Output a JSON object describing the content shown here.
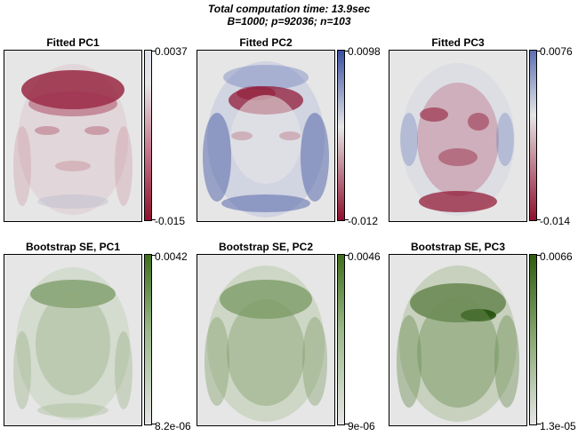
{
  "title": {
    "line1": "Total computation time: 13.9sec",
    "line2": "B=1000; p=92036; n=103"
  },
  "colors": {
    "diverging_low": "#8e0f2e",
    "diverging_mid": "#e8e8e8",
    "diverging_high": "#3a4fa0",
    "sequential_low": "#e6e6e6",
    "sequential_high": "#2f5c10",
    "background": "#e6e6e6"
  },
  "chart_data": [
    {
      "type": "heatmap",
      "title": "Fitted PC1",
      "scale": "diverging",
      "colorbar": {
        "max": "0.0037",
        "min": "-0.015"
      }
    },
    {
      "type": "heatmap",
      "title": "Fitted PC2",
      "scale": "diverging",
      "colorbar": {
        "max": "0.0098",
        "min": "-0.012"
      }
    },
    {
      "type": "heatmap",
      "title": "Fitted PC3",
      "scale": "diverging",
      "colorbar": {
        "max": "0.0076",
        "min": "-0.014"
      }
    },
    {
      "type": "heatmap",
      "title": "Bootstrap SE, PC1",
      "scale": "sequential",
      "colorbar": {
        "max": "0.0042",
        "min": "8.2e-06"
      }
    },
    {
      "type": "heatmap",
      "title": "Bootstrap SE, PC2",
      "scale": "sequential",
      "colorbar": {
        "max": "0.0046",
        "min": "9e-06"
      }
    },
    {
      "type": "heatmap",
      "title": "Bootstrap SE, PC3",
      "scale": "sequential",
      "colorbar": {
        "max": "0.0066",
        "min": "1.3e-05"
      }
    }
  ]
}
